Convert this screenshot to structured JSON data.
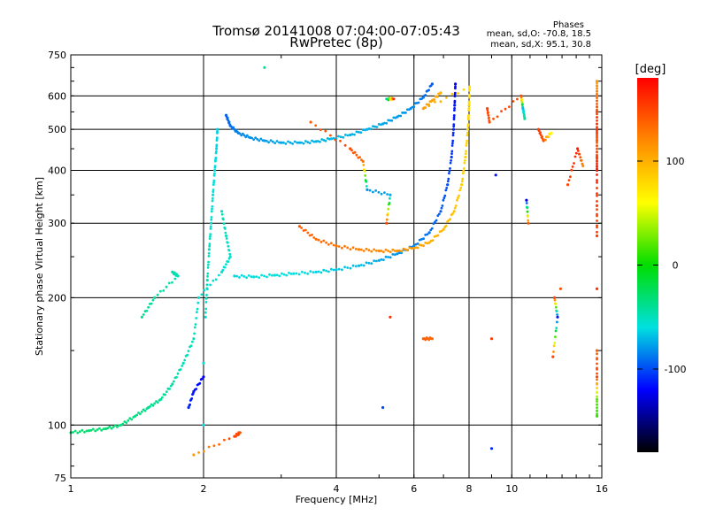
{
  "chart_data": {
    "type": "scatter",
    "title_line1": "Tromsø 20141008 07:04:00-07:05:43",
    "title_line2": "RwPretec (8p)",
    "xlabel": "Frequency [MHz]",
    "ylabel": "Stationary phase Virtual Height [km]",
    "x_scale": "log",
    "y_scale": "log",
    "xlim": [
      1,
      16
    ],
    "ylim": [
      75,
      750
    ],
    "x_ticks": [
      1,
      2,
      4,
      6,
      8,
      10,
      16
    ],
    "x_tick_labels": [
      "1",
      "2",
      "4",
      "6",
      "8",
      "10",
      "16"
    ],
    "y_ticks": [
      75,
      100,
      200,
      300,
      400,
      500,
      600,
      750
    ],
    "y_tick_labels": [
      "75",
      "100",
      "200",
      "300",
      "400",
      "500",
      "600",
      "750"
    ],
    "grid": true,
    "stats": {
      "heading": "Phases",
      "line1": "mean, sd,O: -70.8, 18.5",
      "line2": "mean, sd,X:  95.1, 30.8"
    },
    "colorbar": {
      "label": "[deg]",
      "range": [
        -180,
        180
      ],
      "ticks": [
        100,
        0,
        -100
      ],
      "tick_labels": [
        "100",
        "0",
        "-100"
      ],
      "colors": [
        "#ff0000",
        "#ff8800",
        "#ffff00",
        "#00dd00",
        "#00e0e0",
        "#0000ff",
        "#000000"
      ]
    },
    "series": [
      {
        "points": [
          [
            2.25,
            540,
            -95
          ],
          [
            2.3,
            510,
            -90
          ],
          [
            2.4,
            490,
            -85
          ],
          [
            2.55,
            478,
            -80
          ],
          [
            2.75,
            470,
            -78
          ],
          [
            3.0,
            465,
            -75
          ],
          [
            3.3,
            465,
            -73
          ],
          [
            3.6,
            468,
            -72
          ],
          [
            3.9,
            475,
            -71
          ],
          [
            4.3,
            485,
            -72
          ],
          [
            4.7,
            500,
            -73
          ],
          [
            5.1,
            515,
            -75
          ],
          [
            5.5,
            535,
            -78
          ],
          [
            5.9,
            560,
            -82
          ],
          [
            6.3,
            595,
            -88
          ],
          [
            6.6,
            640,
            -95
          ]
        ]
      },
      {
        "points": [
          [
            2.35,
            225,
            -62
          ],
          [
            2.6,
            224,
            -60
          ],
          [
            2.9,
            226,
            -58
          ],
          [
            3.2,
            228,
            -60
          ],
          [
            3.6,
            230,
            -63
          ],
          [
            4.0,
            233,
            -66
          ],
          [
            4.5,
            238,
            -70
          ],
          [
            5.0,
            245,
            -75
          ],
          [
            5.5,
            254,
            -80
          ],
          [
            6.0,
            265,
            -85
          ],
          [
            6.5,
            285,
            -90
          ],
          [
            6.9,
            320,
            -95
          ],
          [
            7.15,
            370,
            -100
          ],
          [
            7.3,
            430,
            -105
          ],
          [
            7.38,
            500,
            -110
          ],
          [
            7.42,
            570,
            -115
          ],
          [
            7.45,
            640,
            -120
          ]
        ]
      },
      {
        "points": [
          [
            3.3,
            295,
            140
          ],
          [
            3.6,
            275,
            135
          ],
          [
            4.0,
            265,
            130
          ],
          [
            4.5,
            260,
            125
          ],
          [
            5.0,
            258,
            120
          ],
          [
            5.5,
            258,
            115
          ],
          [
            6.0,
            262,
            110
          ],
          [
            6.5,
            270,
            100
          ],
          [
            7.0,
            290,
            95
          ],
          [
            7.4,
            320,
            90
          ],
          [
            7.7,
            370,
            85
          ],
          [
            7.85,
            430,
            82
          ],
          [
            7.95,
            500,
            80
          ],
          [
            8.0,
            570,
            78
          ],
          [
            8.02,
            630,
            75
          ],
          [
            6.3,
            560,
            110
          ],
          [
            6.6,
            585,
            105
          ],
          [
            6.9,
            610,
            100
          ]
        ]
      },
      {
        "points": [
          [
            2.0,
            100,
            -60
          ],
          [
            2.0,
            140,
            -58
          ],
          [
            2.02,
            180,
            -55
          ],
          [
            2.04,
            220,
            -50
          ],
          [
            2.06,
            260,
            -52
          ],
          [
            2.08,
            300,
            -55
          ],
          [
            2.1,
            350,
            -58
          ],
          [
            2.12,
            400,
            -60
          ],
          [
            2.14,
            450,
            -62
          ],
          [
            2.15,
            500,
            -65
          ],
          [
            2.2,
            320,
            -50
          ],
          [
            2.25,
            280,
            -52
          ],
          [
            2.3,
            250,
            -55
          ],
          [
            2.2,
            230,
            -58
          ],
          [
            1.95,
            200,
            -55
          ],
          [
            1.9,
            160,
            -50
          ],
          [
            1.8,
            140,
            -48
          ],
          [
            1.7,
            125,
            -45
          ],
          [
            1.6,
            115,
            -40
          ],
          [
            1.5,
            110,
            -38
          ],
          [
            1.4,
            105,
            -35
          ],
          [
            1.3,
            100,
            -33
          ],
          [
            1.2,
            98,
            -30
          ],
          [
            1.1,
            97,
            -30
          ],
          [
            1.0,
            96,
            -30
          ],
          [
            1.7,
            230,
            -45
          ],
          [
            1.75,
            225,
            -48
          ],
          [
            1.55,
            200,
            -42
          ],
          [
            1.45,
            180,
            -40
          ],
          [
            2.4,
            95,
            150
          ],
          [
            1.85,
            110,
            -110
          ],
          [
            1.9,
            120,
            -115
          ],
          [
            2.0,
            130,
            -120
          ]
        ]
      },
      {
        "points": [
          [
            2.75,
            700,
            -40
          ],
          [
            5.2,
            590,
            -65
          ],
          [
            5.4,
            590,
            160
          ],
          [
            3.5,
            520,
            140
          ],
          [
            4.3,
            450,
            150
          ],
          [
            4.6,
            420,
            130
          ],
          [
            4.7,
            360,
            -80
          ],
          [
            5.3,
            350,
            -75
          ],
          [
            5.2,
            300,
            150
          ],
          [
            5.3,
            180,
            160
          ],
          [
            5.1,
            110,
            -100
          ],
          [
            6.3,
            160,
            140
          ],
          [
            6.6,
            160,
            135
          ],
          [
            9.0,
            88,
            -110
          ],
          [
            9.0,
            160,
            155
          ],
          [
            9.2,
            390,
            -115
          ],
          [
            8.8,
            560,
            150
          ],
          [
            8.9,
            520,
            145
          ],
          [
            10.5,
            600,
            150
          ],
          [
            10.6,
            560,
            -70
          ],
          [
            10.7,
            530,
            -40
          ],
          [
            10.8,
            340,
            -125
          ],
          [
            10.9,
            300,
            140
          ],
          [
            11.5,
            500,
            155
          ],
          [
            11.8,
            470,
            145
          ],
          [
            12.3,
            490,
            60
          ],
          [
            12.5,
            200,
            150
          ],
          [
            12.7,
            180,
            -115
          ],
          [
            12.4,
            145,
            150
          ],
          [
            12.9,
            210,
            145
          ],
          [
            13.4,
            370,
            150
          ],
          [
            14.1,
            450,
            165
          ],
          [
            14.5,
            410,
            120
          ],
          [
            15.6,
            650,
            110
          ],
          [
            15.6,
            600,
            130
          ],
          [
            15.6,
            550,
            150
          ],
          [
            15.6,
            500,
            160
          ],
          [
            15.6,
            470,
            140
          ],
          [
            15.6,
            430,
            155
          ],
          [
            15.6,
            400,
            170
          ],
          [
            15.6,
            330,
            150
          ],
          [
            15.6,
            280,
            155
          ],
          [
            15.6,
            210,
            160
          ],
          [
            15.6,
            150,
            140
          ],
          [
            15.6,
            130,
            150
          ],
          [
            15.6,
            115,
            20
          ],
          [
            15.6,
            105,
            10
          ],
          [
            1.9,
            85,
            110
          ],
          [
            2.35,
            94,
            150
          ],
          [
            2.42,
            96,
            145
          ]
        ]
      }
    ]
  }
}
